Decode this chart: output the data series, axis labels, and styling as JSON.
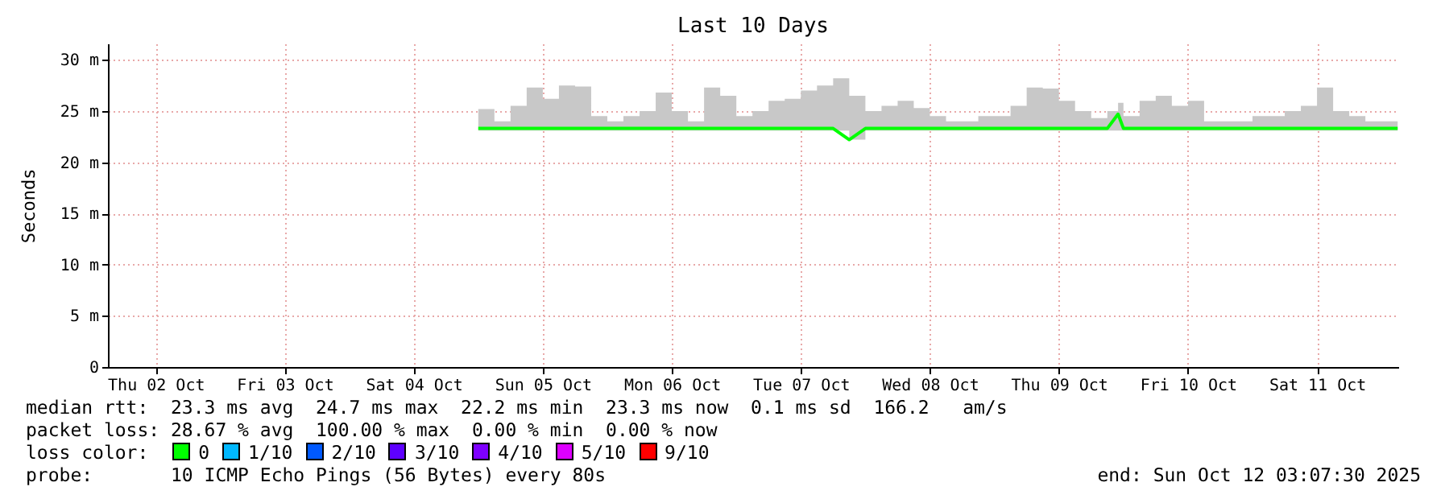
{
  "chart_data": {
    "type": "line",
    "title": "Last 10 Days",
    "ylabel": "Seconds",
    "x": [
      "2025-10-05T00:00",
      "2025-10-05T03:00",
      "2025-10-05T06:00",
      "2025-10-05T09:00",
      "2025-10-05T12:00",
      "2025-10-05T15:00",
      "2025-10-05T18:00",
      "2025-10-05T21:00",
      "2025-10-06T00:00",
      "2025-10-06T03:00",
      "2025-10-06T06:00",
      "2025-10-06T09:00",
      "2025-10-06T12:00",
      "2025-10-06T15:00",
      "2025-10-06T18:00",
      "2025-10-06T21:00",
      "2025-10-07T00:00",
      "2025-10-07T03:00",
      "2025-10-07T06:00",
      "2025-10-07T09:00",
      "2025-10-07T12:00",
      "2025-10-07T15:00",
      "2025-10-07T18:00",
      "2025-10-07T21:00",
      "2025-10-08T00:00",
      "2025-10-08T03:00",
      "2025-10-08T06:00",
      "2025-10-08T09:00",
      "2025-10-08T12:00",
      "2025-10-08T15:00",
      "2025-10-08T18:00",
      "2025-10-08T21:00",
      "2025-10-09T00:00",
      "2025-10-09T03:00",
      "2025-10-09T06:00",
      "2025-10-09T09:00",
      "2025-10-09T12:00",
      "2025-10-09T15:00",
      "2025-10-09T18:00",
      "2025-10-09T21:00",
      "2025-10-09T23:00",
      "2025-10-10T00:00",
      "2025-10-10T03:00",
      "2025-10-10T06:00",
      "2025-10-10T09:00",
      "2025-10-10T12:00",
      "2025-10-10T15:00",
      "2025-10-10T18:00",
      "2025-10-10T21:00",
      "2025-10-11T00:00",
      "2025-10-11T03:00",
      "2025-10-11T06:00",
      "2025-10-11T09:00",
      "2025-10-11T12:00",
      "2025-10-11T15:00",
      "2025-10-11T18:00",
      "2025-10-11T21:00",
      "2025-10-12T00:00",
      "2025-10-12T03:00"
    ],
    "series": [
      {
        "color": "#00ff00",
        "values": [
          23.3,
          23.3,
          23.3,
          23.3,
          23.3,
          23.3,
          23.3,
          23.3,
          23.3,
          23.3,
          23.3,
          23.3,
          23.3,
          23.3,
          23.3,
          23.3,
          23.3,
          23.3,
          23.3,
          23.3,
          23.3,
          23.3,
          23.3,
          22.2,
          23.3,
          23.3,
          23.3,
          23.3,
          23.3,
          23.3,
          23.3,
          23.3,
          23.3,
          23.3,
          23.3,
          23.3,
          23.3,
          23.3,
          23.3,
          23.3,
          24.7,
          23.3,
          23.3,
          23.3,
          23.3,
          23.3,
          23.3,
          23.3,
          23.3,
          23.3,
          23.3,
          23.3,
          23.3,
          23.3,
          23.3,
          23.3,
          23.3,
          23.3,
          23.3
        ],
        "lower": [
          23.1,
          23.1,
          23.1,
          23.1,
          23.1,
          23.1,
          23.1,
          23.1,
          23.1,
          23.1,
          23.1,
          23.1,
          23.1,
          23.1,
          23.1,
          23.1,
          23.1,
          23.1,
          23.1,
          23.1,
          23.1,
          23.1,
          23.1,
          22.2,
          23.1,
          23.1,
          23.1,
          23.1,
          23.1,
          23.1,
          23.1,
          23.1,
          23.1,
          23.1,
          23.1,
          23.1,
          23.1,
          23.1,
          23.1,
          23.1,
          23.1,
          23.1,
          23.1,
          23.1,
          23.1,
          23.1,
          23.1,
          23.1,
          23.1,
          23.1,
          23.1,
          23.1,
          23.1,
          23.1,
          23.1,
          23.1,
          23.1,
          23.1,
          23.1
        ],
        "upper": [
          25.2,
          24.0,
          25.5,
          27.3,
          26.2,
          27.5,
          27.4,
          24.5,
          24.0,
          24.5,
          25.0,
          26.8,
          25.0,
          24.0,
          27.3,
          26.5,
          24.5,
          25.0,
          26.0,
          26.2,
          27.0,
          27.5,
          28.2,
          26.5,
          25.0,
          25.5,
          26.0,
          25.3,
          24.5,
          24.0,
          24.0,
          24.5,
          24.5,
          25.5,
          27.3,
          27.2,
          26.0,
          25.0,
          24.3,
          25.0,
          25.8,
          24.5,
          26.0,
          26.5,
          25.5,
          26.0,
          24.0,
          24.0,
          24.0,
          24.5,
          24.5,
          25.0,
          25.5,
          27.3,
          25.0,
          24.5,
          24.0,
          24.0,
          24.0
        ]
      }
    ],
    "xlim": [
      "2025-10-02T03:07",
      "2025-10-12T03:07"
    ],
    "xticks": [
      {
        "value": "2025-10-02T12:00",
        "label": "Thu 02 Oct"
      },
      {
        "value": "2025-10-03T12:00",
        "label": "Fri 03 Oct"
      },
      {
        "value": "2025-10-04T12:00",
        "label": "Sat 04 Oct"
      },
      {
        "value": "2025-10-05T12:00",
        "label": "Sun 05 Oct"
      },
      {
        "value": "2025-10-06T12:00",
        "label": "Mon 06 Oct"
      },
      {
        "value": "2025-10-07T12:00",
        "label": "Tue 07 Oct"
      },
      {
        "value": "2025-10-08T12:00",
        "label": "Wed 08 Oct"
      },
      {
        "value": "2025-10-09T12:00",
        "label": "Thu 09 Oct"
      },
      {
        "value": "2025-10-10T12:00",
        "label": "Fri 10 Oct"
      },
      {
        "value": "2025-10-11T12:00",
        "label": "Sat 11 Oct"
      }
    ],
    "ylim": [
      0,
      31.6
    ],
    "yticks": [
      {
        "value": 0,
        "label": "0"
      },
      {
        "value": 5,
        "label": "5 m"
      },
      {
        "value": 10,
        "label": "10 m"
      },
      {
        "value": 15,
        "label": "15 m"
      },
      {
        "value": 20,
        "label": "20 m"
      },
      {
        "value": 25,
        "label": "25 m"
      },
      {
        "value": 30,
        "label": "30 m"
      }
    ],
    "grid": true,
    "annotations": [
      "median rtt:  23.3 ms avg  24.7 ms max  22.2 ms min  23.3 ms now  0.1 ms sd  166.2   am/s",
      "packet loss: 28.67 % avg  100.00 % max  0.00 % min  0.00 % now",
      "loss color:",
      "0",
      "1/10",
      "2/10",
      "3/10",
      "4/10",
      "5/10",
      "9/10",
      "probe:       10 ICMP Echo Pings (56 Bytes) every 80s",
      "end: Sun Oct 12 03:07:30 2025"
    ]
  }
}
